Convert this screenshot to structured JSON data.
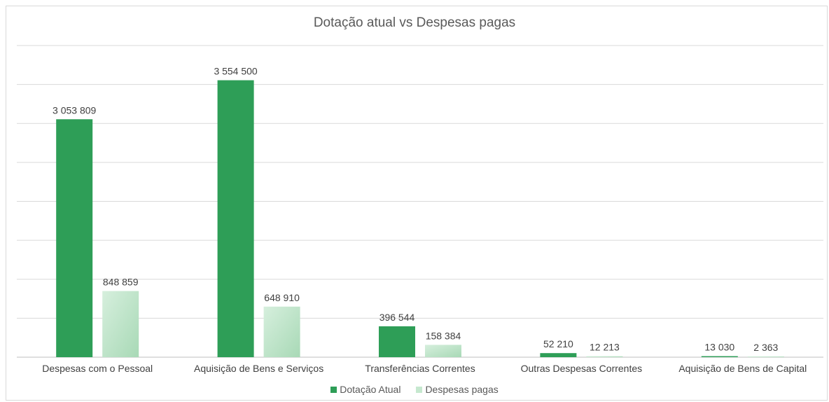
{
  "chart_data": {
    "type": "bar",
    "title": "Dotação atual vs Despesas pagas",
    "categories": [
      "Despesas com o Pessoal",
      "Aquisição de Bens e Serviços",
      "Transferências Correntes",
      "Outras Despesas Correntes",
      "Aquisição de Bens de Capital"
    ],
    "series": [
      {
        "name": "Dotação Atual",
        "values": [
          3053809,
          3554500,
          396544,
          52210,
          13030
        ],
        "labels": [
          "3 053 809",
          "3 554 500",
          "396 544",
          "52 210",
          "13 030"
        ],
        "color": "#2e9e57"
      },
      {
        "name": "Despesas pagas",
        "values": [
          848859,
          648910,
          158384,
          12213,
          2363
        ],
        "labels": [
          "848 859",
          "648 910",
          "158 384",
          "12 213",
          "2 363"
        ],
        "color": "#bfe4c9"
      }
    ],
    "ylim": [
      0,
      4000000
    ],
    "grid": true,
    "legend": "bottom"
  }
}
